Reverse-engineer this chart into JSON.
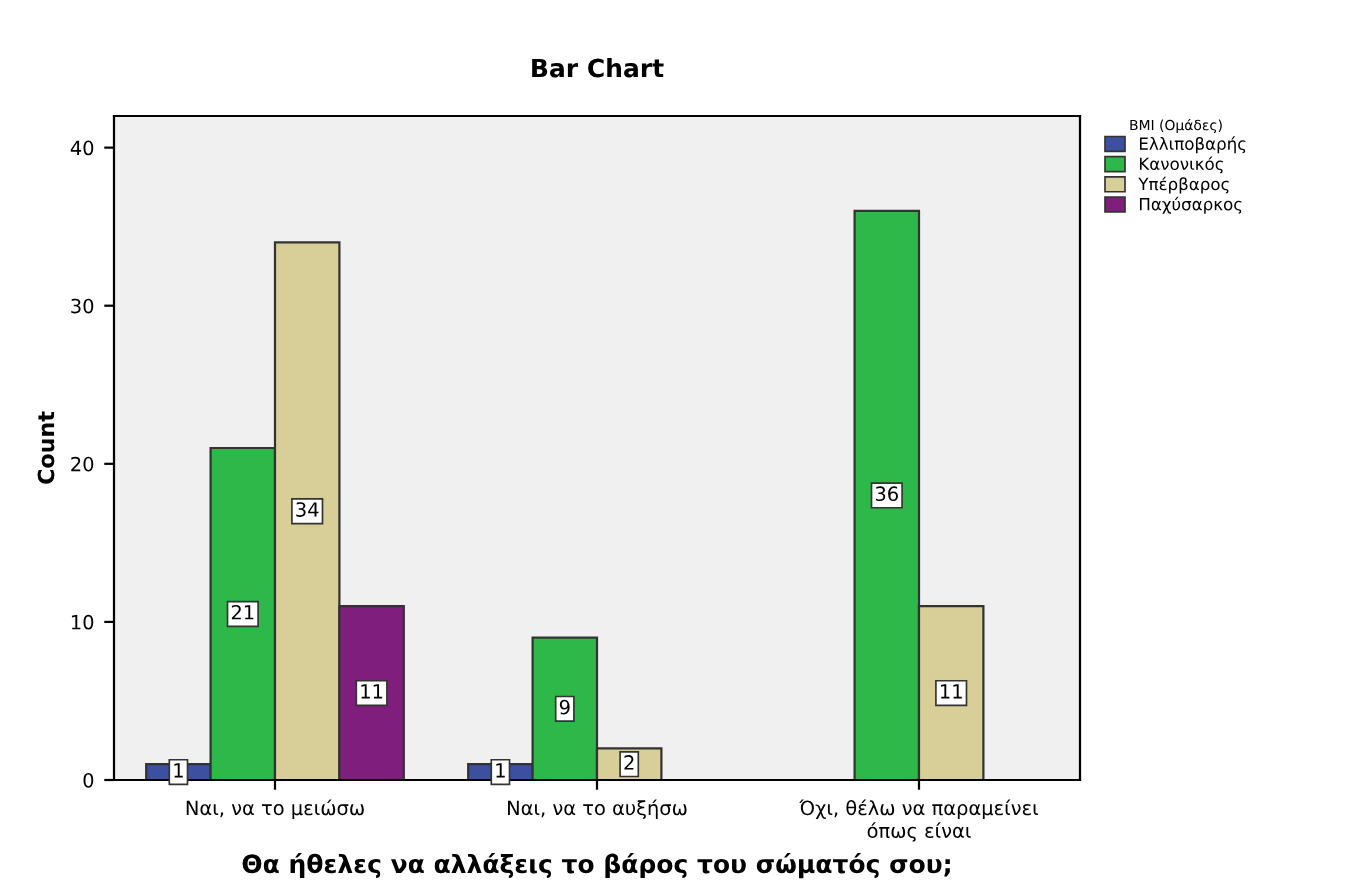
{
  "chart_data": {
    "type": "bar",
    "title": "Bar Chart",
    "xlabel": "Θα ήθελες να αλλάξεις το βάρος του σώματός σου;",
    "ylabel": "Count",
    "legend_title": "BMI (Ομάδες)",
    "categories": [
      "Ναι, να το μειώσω",
      "Ναι, να το αυξήσω",
      "Όχι, θέλω να παραμείνει\nόπως είναι"
    ],
    "series": [
      {
        "name": "Ελλιποβαρής",
        "color": "#3d4fa0",
        "values": [
          1,
          1,
          null
        ]
      },
      {
        "name": "Κανονικός",
        "color": "#2fb84a",
        "values": [
          21,
          9,
          36
        ]
      },
      {
        "name": "Υπέρβαρος",
        "color": "#d8cf98",
        "values": [
          34,
          2,
          11
        ]
      },
      {
        "name": "Παχύσαρκος",
        "color": "#7f1e7c",
        "values": [
          11,
          null,
          null
        ]
      }
    ],
    "ylim": [
      0,
      42
    ],
    "yticks": [
      0,
      10,
      20,
      30,
      40
    ],
    "grid": false,
    "legend": "top right",
    "data_labels": true
  }
}
